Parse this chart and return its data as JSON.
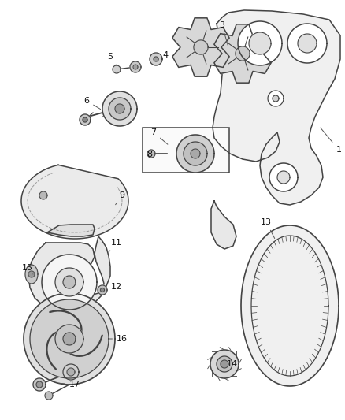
{
  "bg_color": "#ffffff",
  "line_color": "#444444",
  "label_color": "#111111",
  "figsize": [
    4.38,
    5.33
  ],
  "dpi": 100
}
